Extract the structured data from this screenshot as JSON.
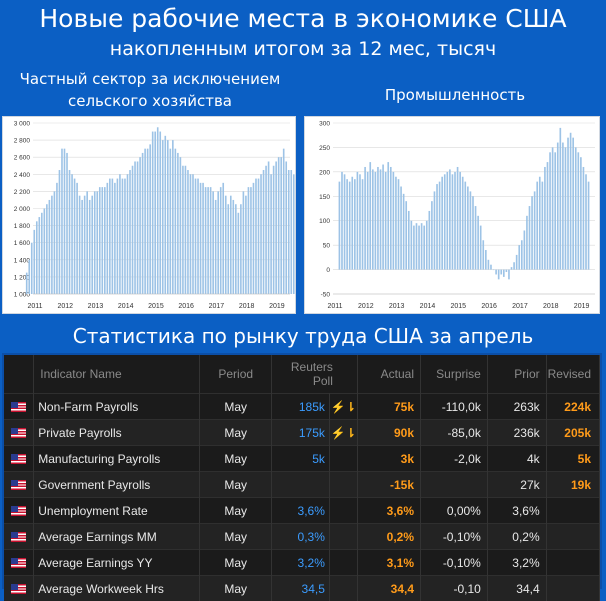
{
  "header": {
    "title": "Новые рабочие места в экономике США",
    "subtitle": "накопленным итогом за 12 мес, тысяч"
  },
  "chart_labels": {
    "left_line1": "Частный сектор за исключением",
    "left_line2": "сельского хозяйства",
    "right": "Промышленность"
  },
  "chart_data": [
    {
      "type": "bar",
      "title": "Частный сектор за исключением сельского хозяйства",
      "ylim": [
        1000,
        3000
      ],
      "yticks": [
        "1 000",
        "1 200",
        "1 400",
        "1 600",
        "1 800",
        "2 000",
        "2 200",
        "2 400",
        "2 600",
        "2 800",
        "3 000"
      ],
      "ytick_values": [
        1000,
        1200,
        1400,
        1600,
        1800,
        2000,
        2200,
        2400,
        2600,
        2800,
        3000
      ],
      "xticks": [
        "2011",
        "2012",
        "2013",
        "2014",
        "2015",
        "2016",
        "2017",
        "2018",
        "2019"
      ],
      "x_start_year": 2011,
      "grid": true,
      "bar_color": "#9dc3e6",
      "values": [
        1250,
        1400,
        1600,
        1750,
        1850,
        1900,
        1950,
        2000,
        2050,
        2100,
        2150,
        2200,
        2300,
        2450,
        2700,
        2700,
        2650,
        2450,
        2400,
        2350,
        2300,
        2150,
        2100,
        2150,
        2200,
        2100,
        2150,
        2200,
        2200,
        2250,
        2250,
        2250,
        2300,
        2350,
        2350,
        2300,
        2350,
        2400,
        2350,
        2350,
        2400,
        2450,
        2500,
        2550,
        2550,
        2600,
        2650,
        2700,
        2700,
        2750,
        2900,
        2900,
        2950,
        2900,
        2800,
        2850,
        2800,
        2700,
        2800,
        2700,
        2650,
        2600,
        2500,
        2500,
        2450,
        2400,
        2400,
        2350,
        2350,
        2300,
        2300,
        2250,
        2250,
        2250,
        2200,
        2100,
        2200,
        2250,
        2300,
        2150,
        2050,
        2150,
        2100,
        2050,
        1950,
        2050,
        2200,
        2150,
        2250,
        2250,
        2300,
        2350,
        2350,
        2400,
        2450,
        2500,
        2550,
        2400,
        2500,
        2550,
        2600,
        2600,
        2700,
        2550,
        2450,
        2450,
        2400,
        2250
      ]
    },
    {
      "type": "bar",
      "title": "Промышленность",
      "ylim": [
        -50,
        300
      ],
      "yticks": [
        "-50",
        "0",
        "50",
        "100",
        "150",
        "200",
        "250",
        "300"
      ],
      "ytick_values": [
        -50,
        0,
        50,
        100,
        150,
        200,
        250,
        300
      ],
      "xticks": [
        "2011",
        "2012",
        "2013",
        "2014",
        "2015",
        "2016",
        "2017",
        "2018",
        "2019"
      ],
      "x_start_year": 2011,
      "grid": true,
      "bar_color": "#9dc3e6",
      "values": [
        180,
        200,
        195,
        185,
        180,
        190,
        185,
        200,
        195,
        185,
        210,
        200,
        220,
        205,
        200,
        210,
        205,
        215,
        200,
        220,
        210,
        200,
        190,
        185,
        170,
        155,
        140,
        120,
        100,
        90,
        95,
        90,
        95,
        90,
        100,
        120,
        140,
        160,
        175,
        180,
        190,
        195,
        200,
        205,
        195,
        200,
        210,
        200,
        190,
        180,
        170,
        160,
        150,
        130,
        110,
        90,
        60,
        40,
        20,
        10,
        0,
        -10,
        -20,
        -10,
        -15,
        -5,
        -20,
        5,
        15,
        30,
        50,
        60,
        80,
        110,
        130,
        150,
        160,
        180,
        190,
        180,
        210,
        220,
        240,
        250,
        240,
        260,
        290,
        260,
        250,
        270,
        280,
        270,
        250,
        240,
        230,
        210,
        195,
        180
      ]
    }
  ],
  "stats": {
    "title": "Статистика по рынку труда США за апрель",
    "columns": {
      "indicator": "Indicator Name",
      "period": "Period",
      "poll_line1": "Reuters",
      "poll_line2": "Poll",
      "actual": "Actual",
      "surprise": "Surprise",
      "prior": "Prior",
      "revised": "Revised"
    },
    "alert_icon": "⚡⇂",
    "rows": [
      {
        "name": "Non-Farm Payrolls",
        "period": "May",
        "poll": "185k",
        "alert": true,
        "actual": "75k",
        "surprise": "-110,0k",
        "prior": "263k",
        "revised": "224k"
      },
      {
        "name": "Private Payrolls",
        "period": "May",
        "poll": "175k",
        "alert": true,
        "actual": "90k",
        "surprise": "-85,0k",
        "prior": "236k",
        "revised": "205k"
      },
      {
        "name": "Manufacturing Payrolls",
        "period": "May",
        "poll": "5k",
        "alert": false,
        "actual": "3k",
        "surprise": "-2,0k",
        "prior": "4k",
        "revised": "5k"
      },
      {
        "name": "Government Payrolls",
        "period": "May",
        "poll": "",
        "alert": false,
        "actual": "-15k",
        "surprise": "",
        "prior": "27k",
        "revised": "19k"
      },
      {
        "name": "Unemployment Rate",
        "period": "May",
        "poll": "3,6%",
        "alert": false,
        "actual": "3,6%",
        "surprise": "0,00%",
        "prior": "3,6%",
        "revised": ""
      },
      {
        "name": "Average Earnings MM",
        "period": "May",
        "poll": "0,3%",
        "alert": false,
        "actual": "0,2%",
        "surprise": "-0,10%",
        "prior": "0,2%",
        "revised": ""
      },
      {
        "name": "Average Earnings YY",
        "period": "May",
        "poll": "3,2%",
        "alert": false,
        "actual": "3,1%",
        "surprise": "-0,10%",
        "prior": "3,2%",
        "revised": ""
      },
      {
        "name": "Average Workweek Hrs",
        "period": "May",
        "poll": "34,5",
        "alert": false,
        "actual": "34,4",
        "surprise": "-0,10",
        "prior": "34,4",
        "revised": ""
      }
    ]
  }
}
